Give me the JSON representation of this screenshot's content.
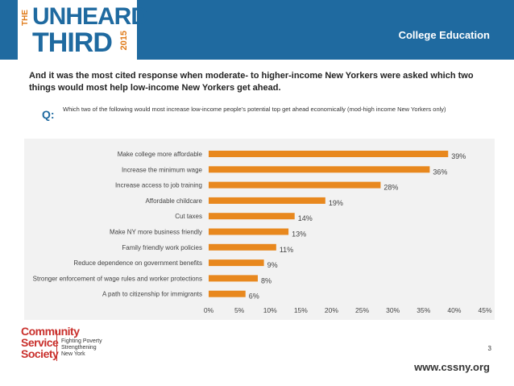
{
  "header": {
    "logo_the": "THE",
    "logo_unheard": "UNHEARD",
    "logo_third": "THIRD",
    "logo_year": "2015",
    "section_title": "College Education"
  },
  "intro": "And it was the most cited response when moderate- to higher-income New Yorkers were asked which two things would most help low-income New Yorkers get ahead.",
  "question": {
    "label": "Q:",
    "text": "Which two of the following would most increase low-income people’s potential top get ahead economically (mod-high income New Yorkers only)"
  },
  "colors": {
    "bar": "#e8881e",
    "brand_blue": "#1f6aa0",
    "css_red": "#c9302c"
  },
  "chart_data": {
    "type": "bar",
    "orientation": "horizontal",
    "categories": [
      "Make college more affordable",
      "Increase the minimum wage",
      "Increase access to job training",
      "Affordable childcare",
      "Cut taxes",
      "Make NY more business friendly",
      "Family friendly work policies",
      "Reduce dependence on government benefits",
      "Stronger enforcement of wage rules and worker protections",
      "A path to citizenship for immigrants"
    ],
    "values": [
      39,
      36,
      28,
      19,
      14,
      13,
      11,
      9,
      8,
      6
    ],
    "value_labels": [
      "39%",
      "36%",
      "28%",
      "19%",
      "14%",
      "13%",
      "11%",
      "9%",
      "8%",
      "6%"
    ],
    "xlim": [
      0,
      45
    ],
    "x_ticks": [
      0,
      5,
      10,
      15,
      20,
      25,
      30,
      35,
      40,
      45
    ],
    "x_tick_labels": [
      "0%",
      "5%",
      "10%",
      "15%",
      "20%",
      "25%",
      "30%",
      "35%",
      "40%",
      "45%"
    ],
    "grid": false
  },
  "footer": {
    "org_lines": [
      "Community",
      "Service",
      "Society"
    ],
    "tagline_lines": [
      "Fighting Poverty",
      "Strengthening",
      "New York"
    ],
    "page_number": "3",
    "website": "www.cssny.org"
  }
}
